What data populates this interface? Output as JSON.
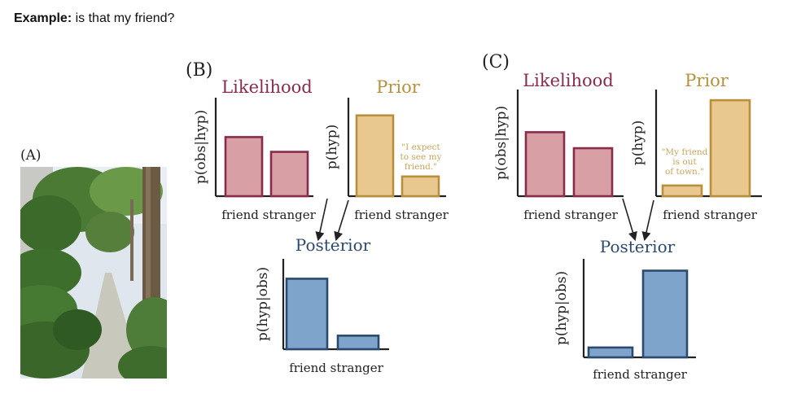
{
  "header": {
    "bold": "Example:",
    "text": "is that my friend?"
  },
  "colors": {
    "likelihood": "#8a2b4a",
    "likelihood_fill": "#d8a0a4",
    "prior": "#b8903c",
    "prior_fill": "#e8c88e",
    "posterior": "#2c4a6e",
    "posterior_fill": "#7ea4cc",
    "prior_note": "#c9a45a"
  },
  "panel_a": {
    "label": "(A)",
    "image": "sidewalk-photo"
  },
  "panel_b": {
    "label": "(B)"
  },
  "panel_c": {
    "label": "(C)"
  },
  "chart_data": [
    {
      "panel": "B",
      "type": "bar",
      "title": "Likelihood",
      "ylabel": "p(obs|hyp)",
      "categories": [
        "friend",
        "stranger"
      ],
      "values": [
        0.6,
        0.45
      ],
      "ylim": [
        0,
        1
      ]
    },
    {
      "panel": "B",
      "type": "bar",
      "title": "Prior",
      "ylabel": "p(hyp)",
      "categories": [
        "friend",
        "stranger"
      ],
      "values": [
        0.82,
        0.2
      ],
      "ylim": [
        0,
        1
      ],
      "annotation": "\"I expect to see my friend.\""
    },
    {
      "panel": "B",
      "type": "bar",
      "title": "Posterior",
      "ylabel": "p(hyp|obs)",
      "categories": [
        "friend",
        "stranger"
      ],
      "values": [
        0.78,
        0.15
      ],
      "ylim": [
        0,
        1
      ]
    },
    {
      "panel": "C",
      "type": "bar",
      "title": "Likelihood",
      "ylabel": "p(obs|hyp)",
      "categories": [
        "friend",
        "stranger"
      ],
      "values": [
        0.6,
        0.45
      ],
      "ylim": [
        0,
        1
      ]
    },
    {
      "panel": "C",
      "type": "bar",
      "title": "Prior",
      "ylabel": "p(hyp)",
      "categories": [
        "friend",
        "stranger"
      ],
      "values": [
        0.1,
        0.9
      ],
      "ylim": [
        0,
        1
      ],
      "annotation": "\"My friend is out of town.\""
    },
    {
      "panel": "C",
      "type": "bar",
      "title": "Posterior",
      "ylabel": "p(hyp|obs)",
      "categories": [
        "friend",
        "stranger"
      ],
      "values": [
        0.1,
        0.88
      ],
      "ylim": [
        0,
        1
      ]
    }
  ]
}
